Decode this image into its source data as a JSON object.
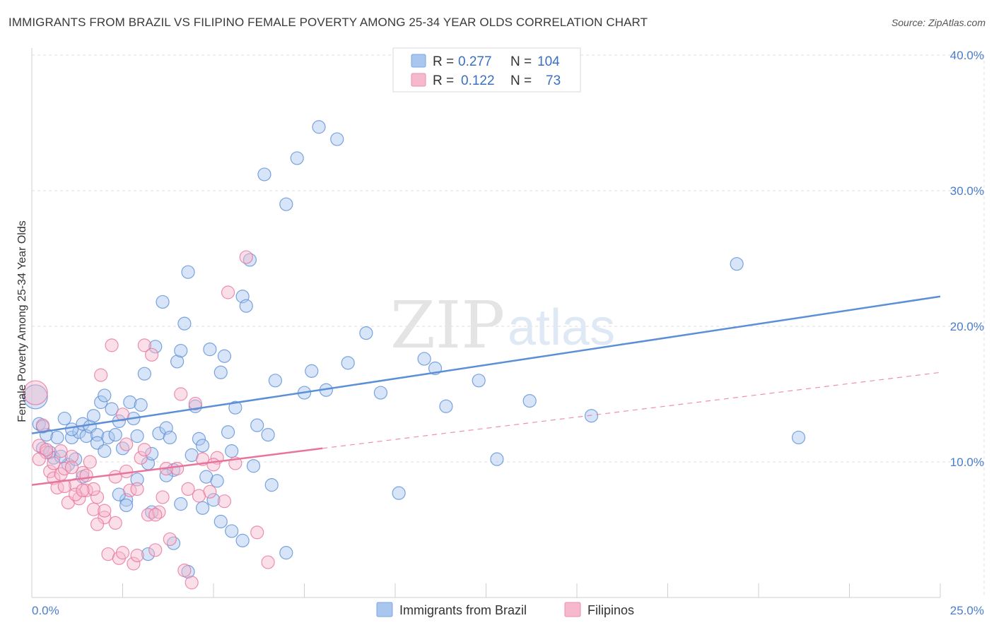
{
  "title": "IMMIGRANTS FROM BRAZIL VS FILIPINO FEMALE POVERTY AMONG 25-34 YEAR OLDS CORRELATION CHART",
  "source": "Source: ZipAtlas.com",
  "watermark": {
    "part1": "ZIP",
    "part2": "atlas"
  },
  "legend": {
    "rows": [
      {
        "r_label": "R =",
        "r_value": "0.277",
        "n_label": "N =",
        "n_value": "104",
        "color": "#a9c6ef"
      },
      {
        "r_label": "R =",
        "r_value": "0.122",
        "n_label": "N =",
        "n_value": "73",
        "color": "#f6b8cd"
      }
    ]
  },
  "bottom_legend": [
    {
      "label": "Immigrants from Brazil",
      "color": "#a9c6ef"
    },
    {
      "label": "Filipinos",
      "color": "#f6b8cd"
    }
  ],
  "chart_data": {
    "type": "scatter",
    "title": "IMMIGRANTS FROM BRAZIL VS FILIPINO FEMALE POVERTY AMONG 25-34 YEAR OLDS CORRELATION CHART",
    "xlabel": "",
    "ylabel": "Female Poverty Among 25-34 Year Olds",
    "xlim": [
      0,
      25
    ],
    "ylim": [
      0,
      40
    ],
    "x_tick_labels": [
      "0.0%",
      "25.0%"
    ],
    "y_ticks": [
      10,
      20,
      30,
      40
    ],
    "y_tick_labels": [
      "10.0%",
      "20.0%",
      "30.0%",
      "40.0%"
    ],
    "grid": true,
    "legend_position": "top-center",
    "series": [
      {
        "name": "Immigrants from Brazil",
        "color": "#5b8fd6",
        "fill": "#a9c6ef",
        "trend": {
          "x": [
            0,
            25
          ],
          "y": [
            12.1,
            22.2
          ],
          "style": "solid"
        },
        "points": [
          [
            0.1,
            14.8
          ],
          [
            0.2,
            12.8
          ],
          [
            0.3,
            11.0
          ],
          [
            0.4,
            12.0
          ],
          [
            0.5,
            10.7
          ],
          [
            0.6,
            10.3
          ],
          [
            0.7,
            11.8
          ],
          [
            0.9,
            13.2
          ],
          [
            1.0,
            9.8
          ],
          [
            1.1,
            11.8
          ],
          [
            1.2,
            10.2
          ],
          [
            1.3,
            12.2
          ],
          [
            1.4,
            12.8
          ],
          [
            1.5,
            11.9
          ],
          [
            1.6,
            12.6
          ],
          [
            1.7,
            13.4
          ],
          [
            1.8,
            12.0
          ],
          [
            1.9,
            14.4
          ],
          [
            2.0,
            14.9
          ],
          [
            2.1,
            11.8
          ],
          [
            2.2,
            13.9
          ],
          [
            2.3,
            12.0
          ],
          [
            2.4,
            13.0
          ],
          [
            2.5,
            11.0
          ],
          [
            2.6,
            7.2
          ],
          [
            2.7,
            14.4
          ],
          [
            2.8,
            13.2
          ],
          [
            2.9,
            11.9
          ],
          [
            3.0,
            14.2
          ],
          [
            3.1,
            16.5
          ],
          [
            3.2,
            9.9
          ],
          [
            3.3,
            6.3
          ],
          [
            3.4,
            18.5
          ],
          [
            3.5,
            12.1
          ],
          [
            3.6,
            21.8
          ],
          [
            3.7,
            12.5
          ],
          [
            3.8,
            11.8
          ],
          [
            3.9,
            9.4
          ],
          [
            4.0,
            17.4
          ],
          [
            4.1,
            18.2
          ],
          [
            4.2,
            20.2
          ],
          [
            4.3,
            24.0
          ],
          [
            4.4,
            10.5
          ],
          [
            4.5,
            14.1
          ],
          [
            4.6,
            11.7
          ],
          [
            4.7,
            11.2
          ],
          [
            4.8,
            8.9
          ],
          [
            4.9,
            18.3
          ],
          [
            5.0,
            7.2
          ],
          [
            5.1,
            8.6
          ],
          [
            5.2,
            16.6
          ],
          [
            5.3,
            17.8
          ],
          [
            5.4,
            12.2
          ],
          [
            5.5,
            10.8
          ],
          [
            5.6,
            14.0
          ],
          [
            5.8,
            22.2
          ],
          [
            5.9,
            21.5
          ],
          [
            6.0,
            24.9
          ],
          [
            6.2,
            12.7
          ],
          [
            6.4,
            31.2
          ],
          [
            6.5,
            12.0
          ],
          [
            6.7,
            16.0
          ],
          [
            7.0,
            29.0
          ],
          [
            7.3,
            32.4
          ],
          [
            7.5,
            15.1
          ],
          [
            7.7,
            16.7
          ],
          [
            7.9,
            34.7
          ],
          [
            8.1,
            15.3
          ],
          [
            8.4,
            33.8
          ],
          [
            8.7,
            17.3
          ],
          [
            9.2,
            19.5
          ],
          [
            9.6,
            15.1
          ],
          [
            10.1,
            7.7
          ],
          [
            10.8,
            17.6
          ],
          [
            11.1,
            16.9
          ],
          [
            11.4,
            14.1
          ],
          [
            12.3,
            16.0
          ],
          [
            12.8,
            10.2
          ],
          [
            13.7,
            14.5
          ],
          [
            15.4,
            13.4
          ],
          [
            19.4,
            24.6
          ],
          [
            21.1,
            11.8
          ],
          [
            2.6,
            6.8
          ],
          [
            3.2,
            3.2
          ],
          [
            3.9,
            4.0
          ],
          [
            4.3,
            1.9
          ],
          [
            5.5,
            4.9
          ],
          [
            5.8,
            4.2
          ],
          [
            7.0,
            3.3
          ],
          [
            4.7,
            6.6
          ],
          [
            1.8,
            11.4
          ],
          [
            0.8,
            10.4
          ],
          [
            2.9,
            8.7
          ],
          [
            3.7,
            9.0
          ],
          [
            0.3,
            12.6
          ],
          [
            2.0,
            10.8
          ],
          [
            4.1,
            6.9
          ],
          [
            5.2,
            5.6
          ],
          [
            6.6,
            8.3
          ],
          [
            1.4,
            8.9
          ],
          [
            2.4,
            7.6
          ],
          [
            3.3,
            10.6
          ],
          [
            1.1,
            12.4
          ],
          [
            6.1,
            9.7
          ]
        ]
      },
      {
        "name": "Filipinos",
        "color": "#e8749b",
        "fill": "#f6b8cd",
        "trend": {
          "x": [
            0,
            8
          ],
          "y": [
            8.3,
            11.0
          ],
          "style": "solid",
          "extension": {
            "x": [
              8,
              25
            ],
            "y": [
              11.0,
              16.6
            ],
            "style": "dashed"
          }
        },
        "points": [
          [
            0.1,
            15.1
          ],
          [
            0.2,
            11.2
          ],
          [
            0.3,
            12.7
          ],
          [
            0.4,
            10.7
          ],
          [
            0.5,
            9.3
          ],
          [
            0.6,
            8.8
          ],
          [
            0.7,
            8.1
          ],
          [
            0.8,
            9.1
          ],
          [
            0.9,
            9.5
          ],
          [
            1.0,
            7.0
          ],
          [
            1.1,
            10.4
          ],
          [
            1.2,
            8.3
          ],
          [
            1.3,
            7.3
          ],
          [
            1.4,
            9.2
          ],
          [
            1.5,
            7.9
          ],
          [
            1.6,
            10.0
          ],
          [
            1.7,
            6.5
          ],
          [
            1.8,
            7.4
          ],
          [
            1.9,
            16.4
          ],
          [
            2.0,
            5.9
          ],
          [
            2.1,
            3.2
          ],
          [
            2.2,
            18.6
          ],
          [
            2.3,
            8.9
          ],
          [
            2.4,
            2.9
          ],
          [
            2.5,
            13.5
          ],
          [
            2.6,
            11.3
          ],
          [
            2.7,
            7.9
          ],
          [
            2.8,
            2.5
          ],
          [
            2.9,
            3.1
          ],
          [
            3.0,
            10.3
          ],
          [
            3.1,
            18.6
          ],
          [
            3.2,
            6.1
          ],
          [
            3.3,
            17.9
          ],
          [
            3.4,
            3.5
          ],
          [
            3.5,
            6.3
          ],
          [
            3.6,
            7.4
          ],
          [
            3.8,
            4.3
          ],
          [
            4.0,
            9.5
          ],
          [
            4.1,
            15.0
          ],
          [
            4.3,
            8.0
          ],
          [
            4.4,
            1.1
          ],
          [
            4.5,
            14.3
          ],
          [
            4.7,
            10.2
          ],
          [
            4.9,
            7.8
          ],
          [
            5.1,
            10.3
          ],
          [
            5.3,
            7.1
          ],
          [
            5.4,
            22.5
          ],
          [
            5.6,
            9.9
          ],
          [
            5.9,
            25.1
          ],
          [
            6.2,
            4.8
          ],
          [
            6.5,
            2.6
          ],
          [
            0.4,
            10.9
          ],
          [
            0.6,
            9.9
          ],
          [
            0.9,
            8.2
          ],
          [
            1.2,
            7.6
          ],
          [
            1.5,
            9.0
          ],
          [
            1.7,
            8.0
          ],
          [
            2.0,
            6.4
          ],
          [
            2.3,
            5.5
          ],
          [
            2.6,
            9.3
          ],
          [
            2.9,
            8.0
          ],
          [
            3.1,
            10.9
          ],
          [
            3.4,
            6.1
          ],
          [
            3.7,
            9.5
          ],
          [
            4.2,
            2.0
          ],
          [
            4.6,
            7.5
          ],
          [
            5.0,
            9.8
          ],
          [
            0.2,
            10.2
          ],
          [
            0.8,
            10.8
          ],
          [
            1.1,
            9.6
          ],
          [
            1.4,
            7.9
          ],
          [
            1.8,
            5.4
          ],
          [
            2.5,
            3.3
          ]
        ]
      }
    ]
  }
}
